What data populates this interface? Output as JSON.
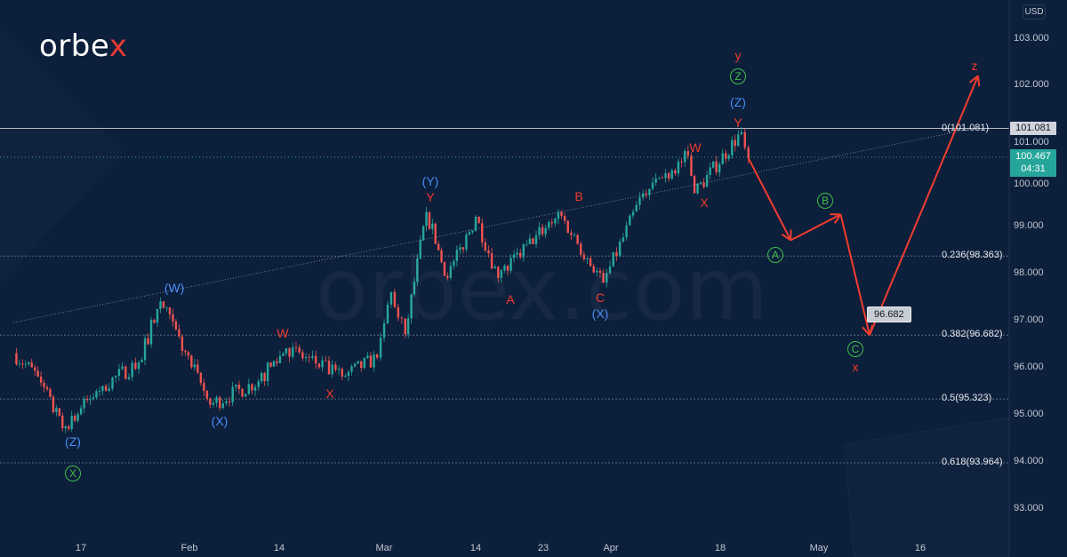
{
  "brand": {
    "logo_main": "orbe",
    "logo_accent": "x",
    "watermark": "orbex.com"
  },
  "currency": "USD",
  "price_axis": {
    "ticks": [
      "103.000",
      "102.000",
      "101.000",
      "100.000",
      "99.000",
      "98.000",
      "97.000",
      "96.000",
      "95.000",
      "94.000",
      "93.000"
    ]
  },
  "time_axis": {
    "ticks": [
      "17",
      "Feb",
      "14",
      "Mar",
      "14",
      "23",
      "Apr",
      "18",
      "May",
      "16"
    ]
  },
  "last_line_label": "101.081",
  "current_price": {
    "value": "100.467",
    "countdown": "04:31",
    "color": "#26a69a"
  },
  "fib_levels": [
    {
      "label": "0(101.081)",
      "price": 101.081
    },
    {
      "label": "0.236(98.363)",
      "price": 98.363
    },
    {
      "label": "0.382(96.682)",
      "price": 96.682
    },
    {
      "label": "0.5(95.323)",
      "price": 95.323
    },
    {
      "label": "0.618(93.964)",
      "price": 93.964
    }
  ],
  "callout": "96.682",
  "colors": {
    "background": "#0c1f3b",
    "up": "#26a69a",
    "down": "#ef5350",
    "projection": "#f23d2e",
    "blue_labels": "#4a8df6",
    "green_labels": "#3fbf4a"
  },
  "wave_labels": [
    {
      "text": "(Z)",
      "style": "blue"
    },
    {
      "text": "X",
      "style": "green"
    },
    {
      "text": "(W)",
      "style": "blue"
    },
    {
      "text": "(X)",
      "style": "blue"
    },
    {
      "text": "W",
      "style": "red"
    },
    {
      "text": "X",
      "style": "red"
    },
    {
      "text": "(Y)",
      "style": "blue"
    },
    {
      "text": "Y",
      "style": "red"
    },
    {
      "text": "A",
      "style": "red"
    },
    {
      "text": "B",
      "style": "red"
    },
    {
      "text": "C",
      "style": "red"
    },
    {
      "text": "(X)",
      "style": "blue"
    },
    {
      "text": "W",
      "style": "red"
    },
    {
      "text": "X",
      "style": "red"
    },
    {
      "text": "y",
      "style": "red"
    },
    {
      "text": "Z",
      "style": "green"
    },
    {
      "text": "(Z)",
      "style": "blue"
    },
    {
      "text": "Y",
      "style": "red"
    },
    {
      "text": "A",
      "style": "green"
    },
    {
      "text": "B",
      "style": "green"
    },
    {
      "text": "C",
      "style": "green"
    },
    {
      "text": "x",
      "style": "red"
    },
    {
      "text": "z",
      "style": "red"
    }
  ],
  "chart_data": {
    "type": "candlestick",
    "ylim": [
      92.5,
      103.5
    ],
    "grid": false,
    "price_pivots": [
      {
        "date": "2022-01-06",
        "price": 96.3
      },
      {
        "date": "2022-01-10",
        "price": 95.8
      },
      {
        "date": "2022-01-14",
        "price": 94.7
      },
      {
        "date": "2022-01-20",
        "price": 95.6
      },
      {
        "date": "2022-01-25",
        "price": 96.1
      },
      {
        "date": "2022-01-28",
        "price": 97.4
      },
      {
        "date": "2022-02-04",
        "price": 95.2
      },
      {
        "date": "2022-02-11",
        "price": 95.7
      },
      {
        "date": "2022-02-15",
        "price": 96.4
      },
      {
        "date": "2022-02-23",
        "price": 95.8
      },
      {
        "date": "2022-02-28",
        "price": 96.2
      },
      {
        "date": "2022-03-02",
        "price": 97.6
      },
      {
        "date": "2022-03-04",
        "price": 96.7
      },
      {
        "date": "2022-03-07",
        "price": 99.3
      },
      {
        "date": "2022-03-10",
        "price": 97.9
      },
      {
        "date": "2022-03-14",
        "price": 99.2
      },
      {
        "date": "2022-03-17",
        "price": 97.9
      },
      {
        "date": "2022-03-25",
        "price": 99.3
      },
      {
        "date": "2022-03-31",
        "price": 97.8
      },
      {
        "date": "2022-04-06",
        "price": 99.7
      },
      {
        "date": "2022-04-13",
        "price": 100.5
      },
      {
        "date": "2022-04-14",
        "price": 99.7
      },
      {
        "date": "2022-04-21",
        "price": 101.0
      },
      {
        "date": "2022-04-22",
        "price": 100.45
      }
    ],
    "projection": [
      {
        "date": "2022-04-22",
        "price": 100.45
      },
      {
        "date": "2022-04-28",
        "price": 98.7
      },
      {
        "date": "2022-05-05",
        "price": 99.25
      },
      {
        "date": "2022-05-09",
        "price": 96.682
      },
      {
        "date": "2022-05-26",
        "price": 102.2
      }
    ],
    "trendline": [
      {
        "date": "2022-01-06",
        "price": 96.95
      },
      {
        "date": "2022-05-26",
        "price": 101.1
      }
    ]
  }
}
